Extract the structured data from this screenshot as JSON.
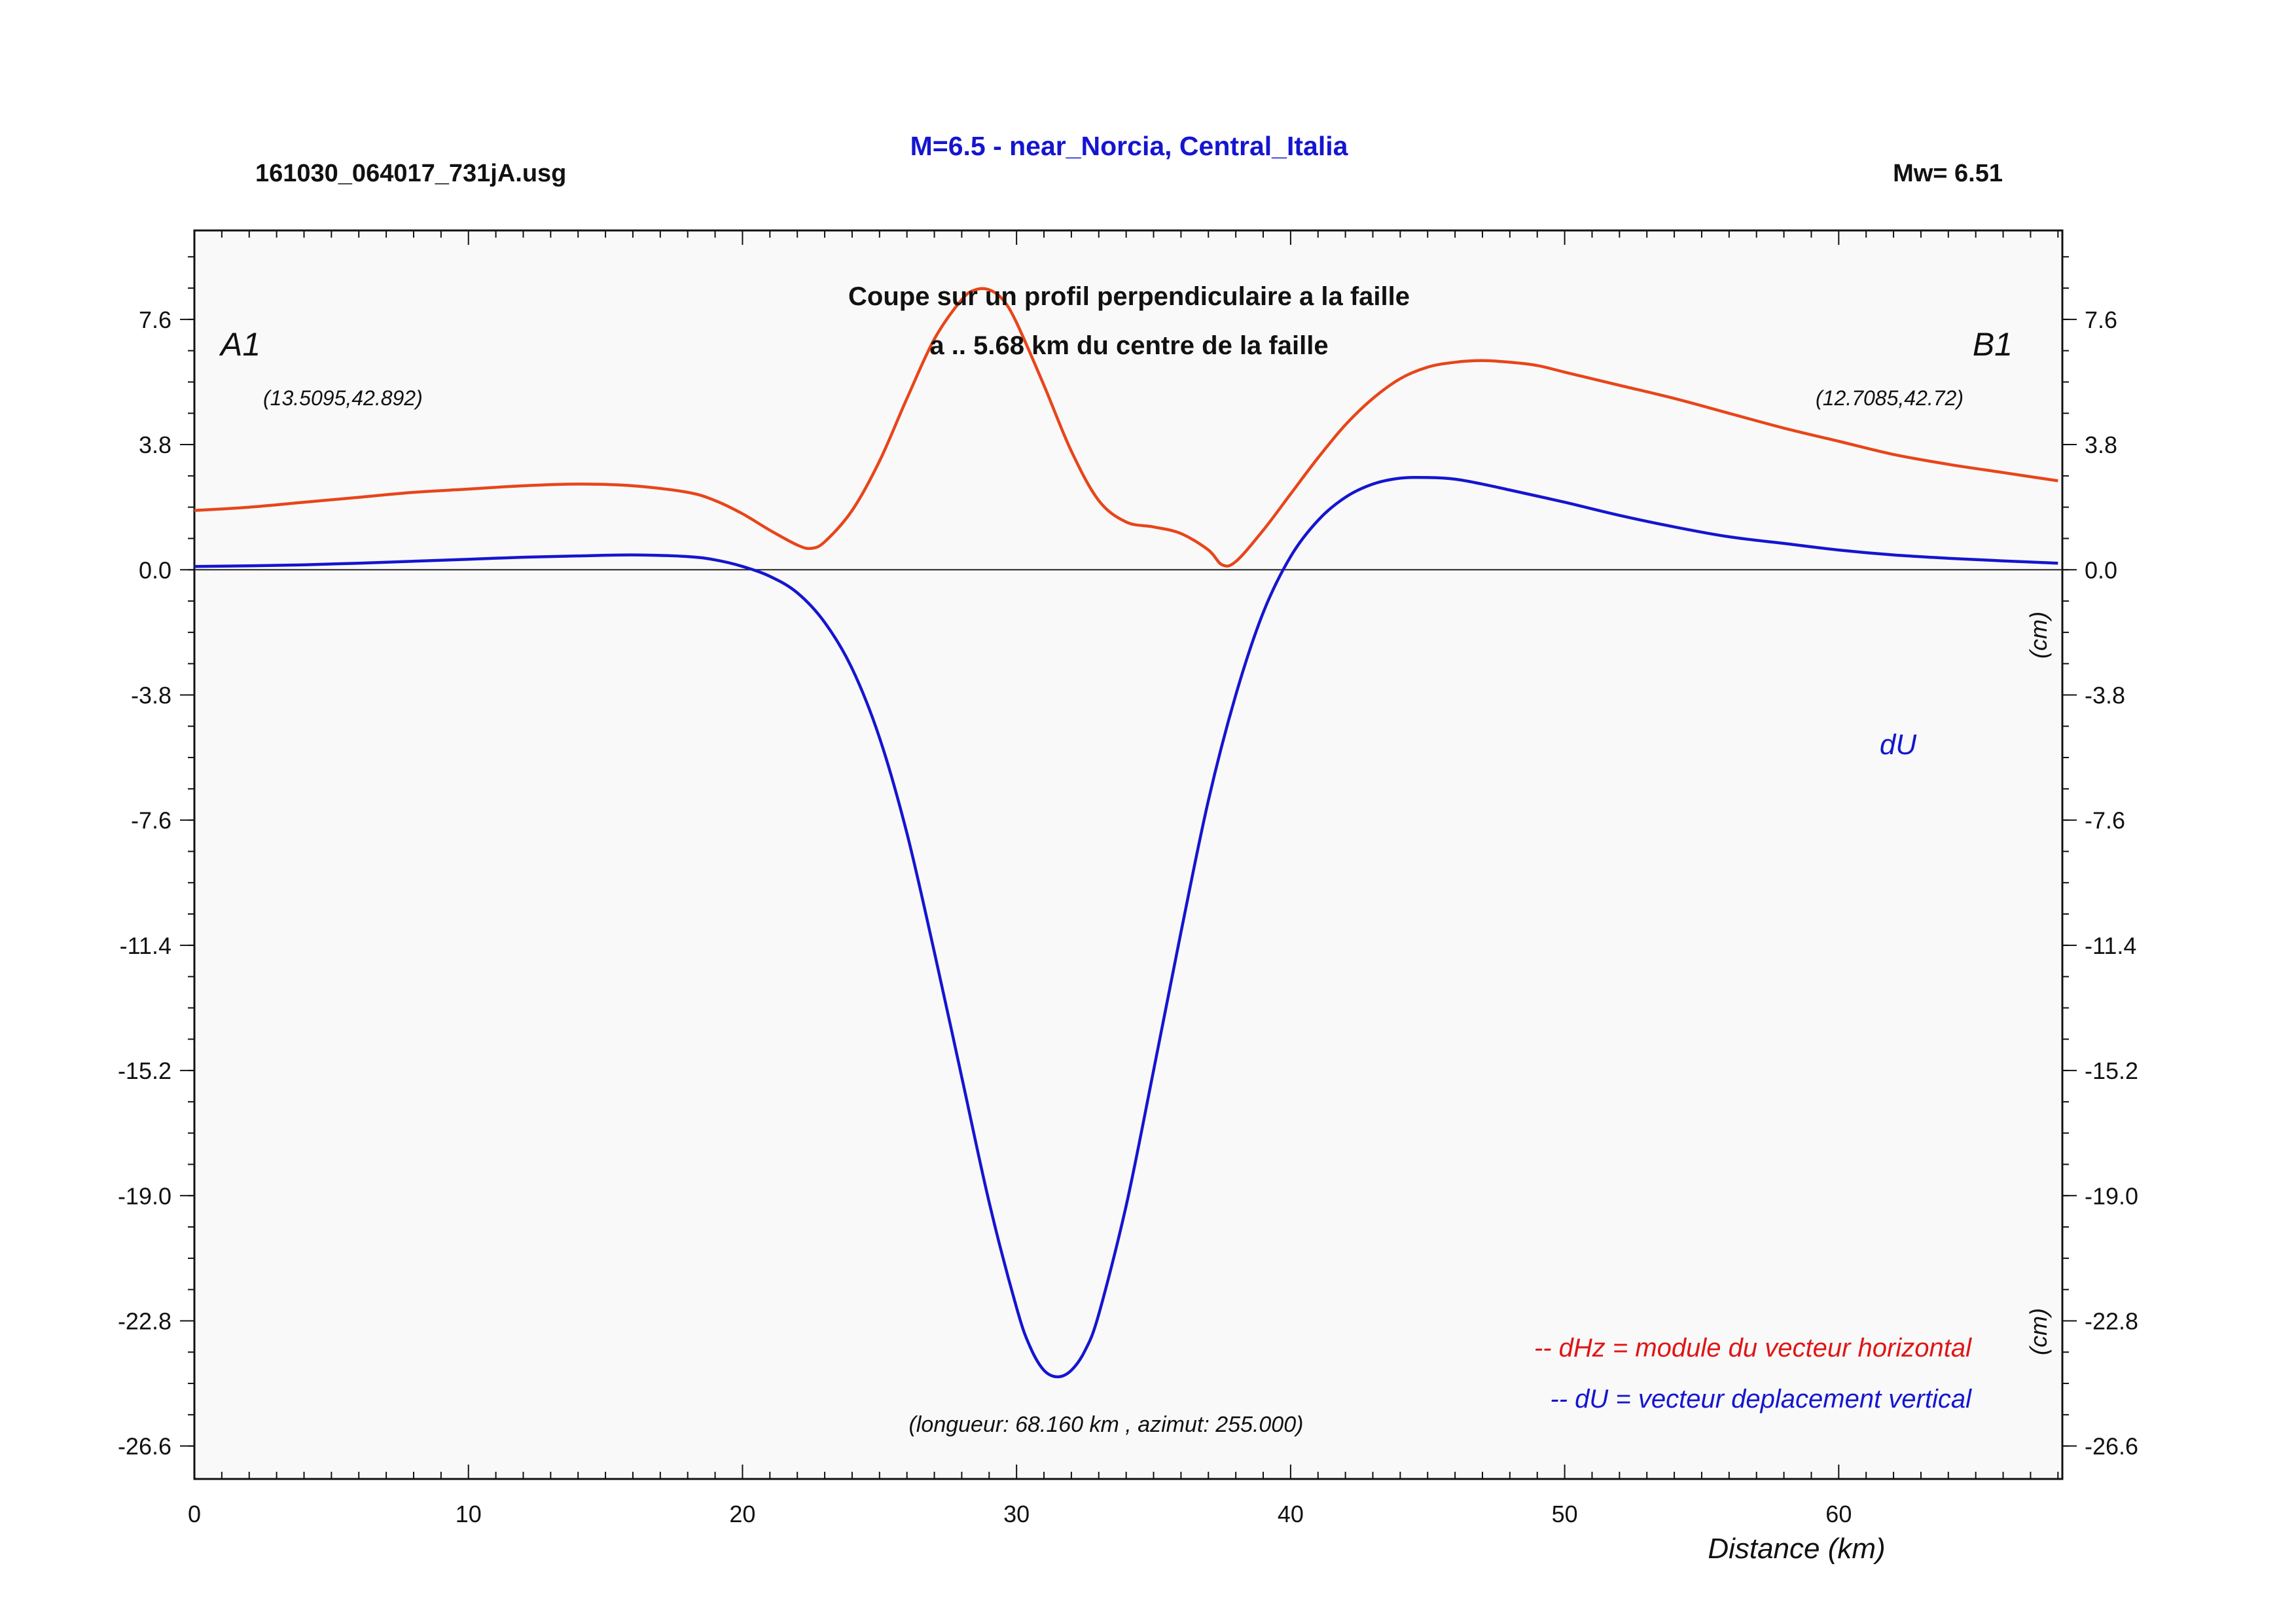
{
  "header": {
    "filename": "161030_064017_731jA.usg",
    "title": "M=6.5 - near_Norcia, Central_Italia",
    "magnitude": "Mw= 6.51"
  },
  "plot": {
    "subtitle_line1": "Coupe sur un profil perpendiculaire a la faille",
    "subtitle_line2": "a .. 5.68 km du centre de la faille",
    "point_a_label": "A1",
    "point_a_coords": "(13.5095,42.892)",
    "point_b_label": "B1",
    "point_b_coords": "(12.7085,42.72)",
    "length_note": "(longueur: 68.160 km , azimut: 255.000)",
    "du_label": "dU",
    "unit_label_upper": "(cm)",
    "unit_label_lower": "(cm)",
    "legend_dhz": "-- dHz = module du vecteur horizontal",
    "legend_du": "-- dU =  vecteur deplacement vertical",
    "xlabel": "Distance (km)"
  },
  "colors": {
    "dhz": "#e8451a",
    "du": "#1515d0",
    "title": "#1515d0",
    "legend_dhz": "#e01515",
    "legend_du": "#1515d0",
    "plot_bg": "#f9f9f9"
  },
  "chart_data": {
    "type": "line",
    "xlim": [
      0,
      68.16
    ],
    "ylim": [
      -27.6,
      10.3
    ],
    "x_ticks": [
      0,
      10,
      20,
      30,
      40,
      50,
      60
    ],
    "x_tick_labels": [
      "0",
      "10",
      "20",
      "30",
      "40",
      "50",
      "60"
    ],
    "y_ticks": [
      7.6,
      3.8,
      0,
      -3.8,
      -7.6,
      -11.4,
      -15.2,
      -19.0,
      -22.8,
      -26.6
    ],
    "y_tick_labels": [
      "7.6",
      "3.8",
      "0.0",
      "-3.8",
      "-7.6",
      "-11.4",
      "-15.2",
      "-19.0",
      "-22.8",
      "-26.6"
    ],
    "series": [
      {
        "name": "dHz",
        "color": "#e8451a",
        "x": [
          0,
          2,
          4,
          6,
          8,
          10,
          12,
          14,
          16,
          18,
          19,
          20,
          21,
          22,
          22.5,
          23,
          24,
          25,
          26,
          27,
          28,
          28.5,
          29,
          29.5,
          30,
          31,
          32,
          33,
          34,
          35,
          36,
          37,
          37.5,
          38,
          39,
          40,
          41,
          42,
          43,
          44,
          45,
          46,
          47,
          48,
          49,
          50,
          52,
          54,
          56,
          58,
          60,
          62,
          64,
          66,
          68
        ],
        "y": [
          1.8,
          1.9,
          2.05,
          2.2,
          2.35,
          2.45,
          2.55,
          2.6,
          2.55,
          2.35,
          2.1,
          1.7,
          1.2,
          0.75,
          0.65,
          0.85,
          1.8,
          3.3,
          5.2,
          7.0,
          8.2,
          8.5,
          8.5,
          8.2,
          7.5,
          5.6,
          3.6,
          2.1,
          1.45,
          1.3,
          1.1,
          0.6,
          0.15,
          0.25,
          1.2,
          2.3,
          3.4,
          4.4,
          5.2,
          5.8,
          6.15,
          6.3,
          6.35,
          6.3,
          6.2,
          6.0,
          5.6,
          5.2,
          4.75,
          4.3,
          3.9,
          3.5,
          3.2,
          2.95,
          2.7
        ]
      },
      {
        "name": "dU",
        "color": "#1515d0",
        "x": [
          0,
          2,
          4,
          6,
          8,
          10,
          12,
          14,
          16,
          18,
          19,
          20,
          21,
          22,
          23,
          24,
          25,
          26,
          27,
          28,
          29,
          30,
          30.5,
          31,
          31.5,
          32,
          32.5,
          33,
          34,
          35,
          36,
          37,
          38,
          39,
          40,
          41,
          42,
          43,
          44,
          45,
          46,
          47,
          48,
          50,
          52,
          54,
          56,
          58,
          60,
          62,
          64,
          66,
          68
        ],
        "y": [
          0.1,
          0.12,
          0.15,
          0.2,
          0.26,
          0.32,
          0.38,
          0.42,
          0.45,
          0.4,
          0.3,
          0.1,
          -0.2,
          -0.7,
          -1.6,
          -3.0,
          -5.1,
          -8.0,
          -11.6,
          -15.4,
          -19.2,
          -22.4,
          -23.6,
          -24.3,
          -24.5,
          -24.3,
          -23.7,
          -22.6,
          -19.3,
          -15.2,
          -11.0,
          -7.0,
          -3.8,
          -1.3,
          0.4,
          1.5,
          2.2,
          2.6,
          2.78,
          2.8,
          2.75,
          2.6,
          2.42,
          2.05,
          1.65,
          1.3,
          1.0,
          0.8,
          0.6,
          0.45,
          0.35,
          0.27,
          0.2
        ]
      }
    ]
  }
}
